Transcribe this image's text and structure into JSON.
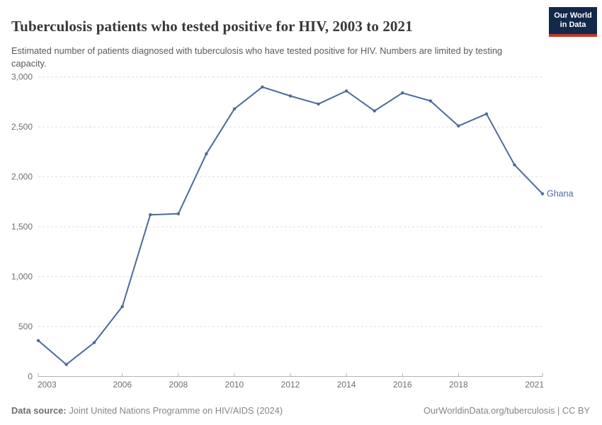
{
  "header": {
    "title": "Tuberculosis patients who tested positive for HIV, 2003 to 2021",
    "subtitle": "Estimated number of patients diagnosed with tuberculosis who have tested positive for HIV. Numbers are limited by testing capacity."
  },
  "logo": {
    "line1": "Our World",
    "line2": "in Data",
    "bg_color": "#12294a",
    "stripe_color": "#c0392b"
  },
  "chart_data": {
    "type": "line",
    "title": "Tuberculosis patients who tested positive for HIV, 2003 to 2021",
    "x": [
      2003,
      2004,
      2005,
      2006,
      2007,
      2008,
      2009,
      2010,
      2011,
      2012,
      2013,
      2014,
      2015,
      2016,
      2017,
      2018,
      2019,
      2020,
      2021
    ],
    "series": [
      {
        "name": "Ghana",
        "color": "#4C6A9C",
        "values": [
          360,
          120,
          340,
          700,
          1620,
          1630,
          2230,
          2680,
          2900,
          2810,
          2730,
          2860,
          2660,
          2840,
          2760,
          2510,
          2630,
          2120,
          1830
        ]
      }
    ],
    "entity_label": "Ghana",
    "ylim": [
      0,
      3000
    ],
    "yticks": [
      0,
      500,
      1000,
      1500,
      2000,
      2500,
      3000
    ],
    "ytick_labels": [
      "0",
      "500",
      "1,000",
      "1,500",
      "2,000",
      "2,500",
      "3,000"
    ],
    "xticks": [
      2003,
      2006,
      2008,
      2010,
      2012,
      2014,
      2016,
      2018,
      2021
    ],
    "grid": "horizontal-dashed",
    "legend_position": "end-of-line-label",
    "xlabel": "",
    "ylabel": ""
  },
  "footer": {
    "source_label": "Data source:",
    "source_text": "Joint United Nations Programme on HIV/AIDS (2024)",
    "rights": "OurWorldinData.org/tuberculosis | CC BY"
  },
  "colors": {
    "line": "#4C6A9C",
    "axis_text": "#6e6e6e",
    "grid": "#dedede",
    "axis_line": "#b3b3b3",
    "title": "#383838",
    "subtitle": "#5a5a5a",
    "footer_text": "#858585"
  }
}
